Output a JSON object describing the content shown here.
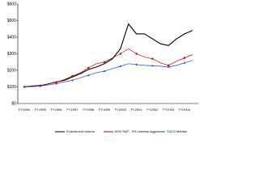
{
  "chart_data": {
    "type": "line",
    "categories": [
      "FY1994",
      null,
      "FY1995",
      null,
      "FY1996",
      null,
      "FY1997",
      null,
      "FY1998",
      null,
      "FY1999",
      null,
      "FY2000",
      null,
      "FY2001",
      null,
      "FY2002",
      null,
      "FY2003",
      null,
      "FY2004",
      null
    ],
    "series": [
      {
        "name": "Endowment returns",
        "color": "#000000",
        "marker": "none",
        "values": [
          100,
          105,
          108,
          118,
          130,
          140,
          160,
          180,
          205,
          220,
          240,
          270,
          330,
          480,
          420,
          420,
          390,
          360,
          350,
          390,
          420,
          440
        ]
      },
      {
        "name": "60% S&P - 5% Lehman Agg",
        "color": "#c00000",
        "marker": "square",
        "values": [
          100,
          103,
          108,
          118,
          128,
          145,
          165,
          185,
          215,
          240,
          250,
          275,
          300,
          330,
          300,
          280,
          270,
          245,
          230,
          255,
          275,
          295
        ]
      },
      {
        "name": "TUCS Median",
        "color": "#1f3fd0",
        "marker": "triangle",
        "values": [
          100,
          102,
          105,
          112,
          120,
          130,
          140,
          155,
          170,
          185,
          195,
          210,
          225,
          240,
          235,
          230,
          228,
          225,
          220,
          230,
          245,
          260
        ]
      }
    ],
    "ylim": [
      0,
      600
    ],
    "yticks": [
      {
        "value": 0,
        "label": "$0"
      },
      {
        "value": 100,
        "label": "$100"
      },
      {
        "value": 200,
        "label": "$200"
      },
      {
        "value": 300,
        "label": "$300"
      },
      {
        "value": 400,
        "label": "$400"
      },
      {
        "value": 500,
        "label": "$500"
      },
      {
        "value": 600,
        "label": "$600"
      }
    ],
    "grid": false,
    "legend": "bottom"
  }
}
